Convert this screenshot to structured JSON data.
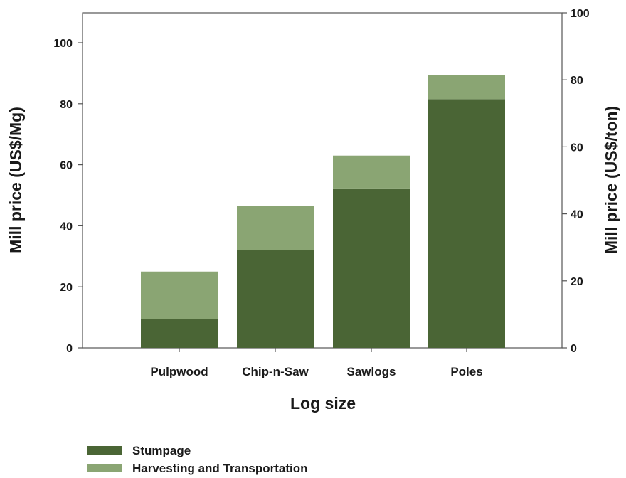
{
  "chart_data": {
    "type": "bar",
    "stacked": true,
    "categories": [
      "Pulpwood",
      "Chip-n-Saw",
      "Sawlogs",
      "Poles"
    ],
    "series": [
      {
        "name": "Stumpage",
        "values": [
          9.5,
          32,
          52,
          81.5
        ],
        "color": "#4a6535"
      },
      {
        "name": "Harvesting and Transportation",
        "values": [
          15.5,
          14.5,
          11,
          8
        ],
        "color": "#8aa573"
      }
    ],
    "xlabel": "Log size",
    "ylabel": "Mill price (US$/Mg)",
    "ylabel_right": "Mill price (US$/ton)",
    "ylim": [
      0,
      110
    ],
    "yticks": [
      0,
      20,
      40,
      60,
      80,
      100
    ],
    "ylim_right": [
      0,
      100
    ],
    "yticks_right": [
      0,
      20,
      40,
      60,
      80,
      100
    ],
    "grid": false,
    "legend_position": "bottom-left"
  }
}
